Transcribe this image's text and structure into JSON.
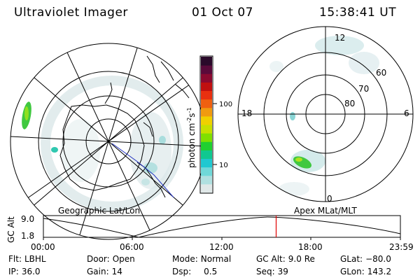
{
  "header": {
    "instrument": "Ultraviolet Imager",
    "date": "01 Oct 07",
    "time": "15:38:41 UT"
  },
  "colorbar": {
    "label": "photon cm",
    "label_exp1": "-2",
    "label_s": "s",
    "label_exp2": "-1",
    "ticks": [
      {
        "label": "100",
        "value": 100
      },
      {
        "label": "10",
        "value": 10
      }
    ],
    "colors": [
      "#2a0a2a",
      "#5a0a3a",
      "#8a0a30",
      "#c01010",
      "#e83010",
      "#f06010",
      "#f09a10",
      "#f0d000",
      "#c8e000",
      "#80e000",
      "#20d030",
      "#10c890",
      "#20c8d0",
      "#70d8d8",
      "#b0e0e0",
      "#e0e8e8"
    ]
  },
  "left_map": {
    "label": "Geographic Lat/Lon"
  },
  "right_map": {
    "label": "Apex MLat/MLT",
    "mlt_labels": {
      "top": "12",
      "left": "18",
      "right": "6",
      "bottom": "0"
    },
    "lat_labels": [
      "60",
      "70",
      "80"
    ]
  },
  "timeline": {
    "axis_label": "GC Alt",
    "y_ticks": [
      "9.0",
      "1.8"
    ],
    "x_ticks": [
      "00:00",
      "06:00",
      "12:00",
      "18:00",
      "23:59"
    ],
    "current_time_fraction": 0.652,
    "marker_color": "#e00000"
  },
  "info": {
    "filter_label": "Flt:",
    "filter_value": "LBHL",
    "ip_label": "IP:",
    "ip_value": "36.0",
    "door_label": "Door:",
    "door_value": "Open",
    "gain_label": "Gain:",
    "gain_value": "14",
    "mode_label": "Mode:",
    "mode_value": "Normal",
    "dsp_label": "Dsp:",
    "dsp_value": "0.5",
    "gcalt_label": "GC Alt:",
    "gcalt_value": "9.0 Re",
    "seq_label": "Seq:",
    "seq_value": "39",
    "glat_label": "GLat:",
    "glat_value": "−80.0",
    "glon_label": "GLon:",
    "glon_value": "143.2"
  }
}
